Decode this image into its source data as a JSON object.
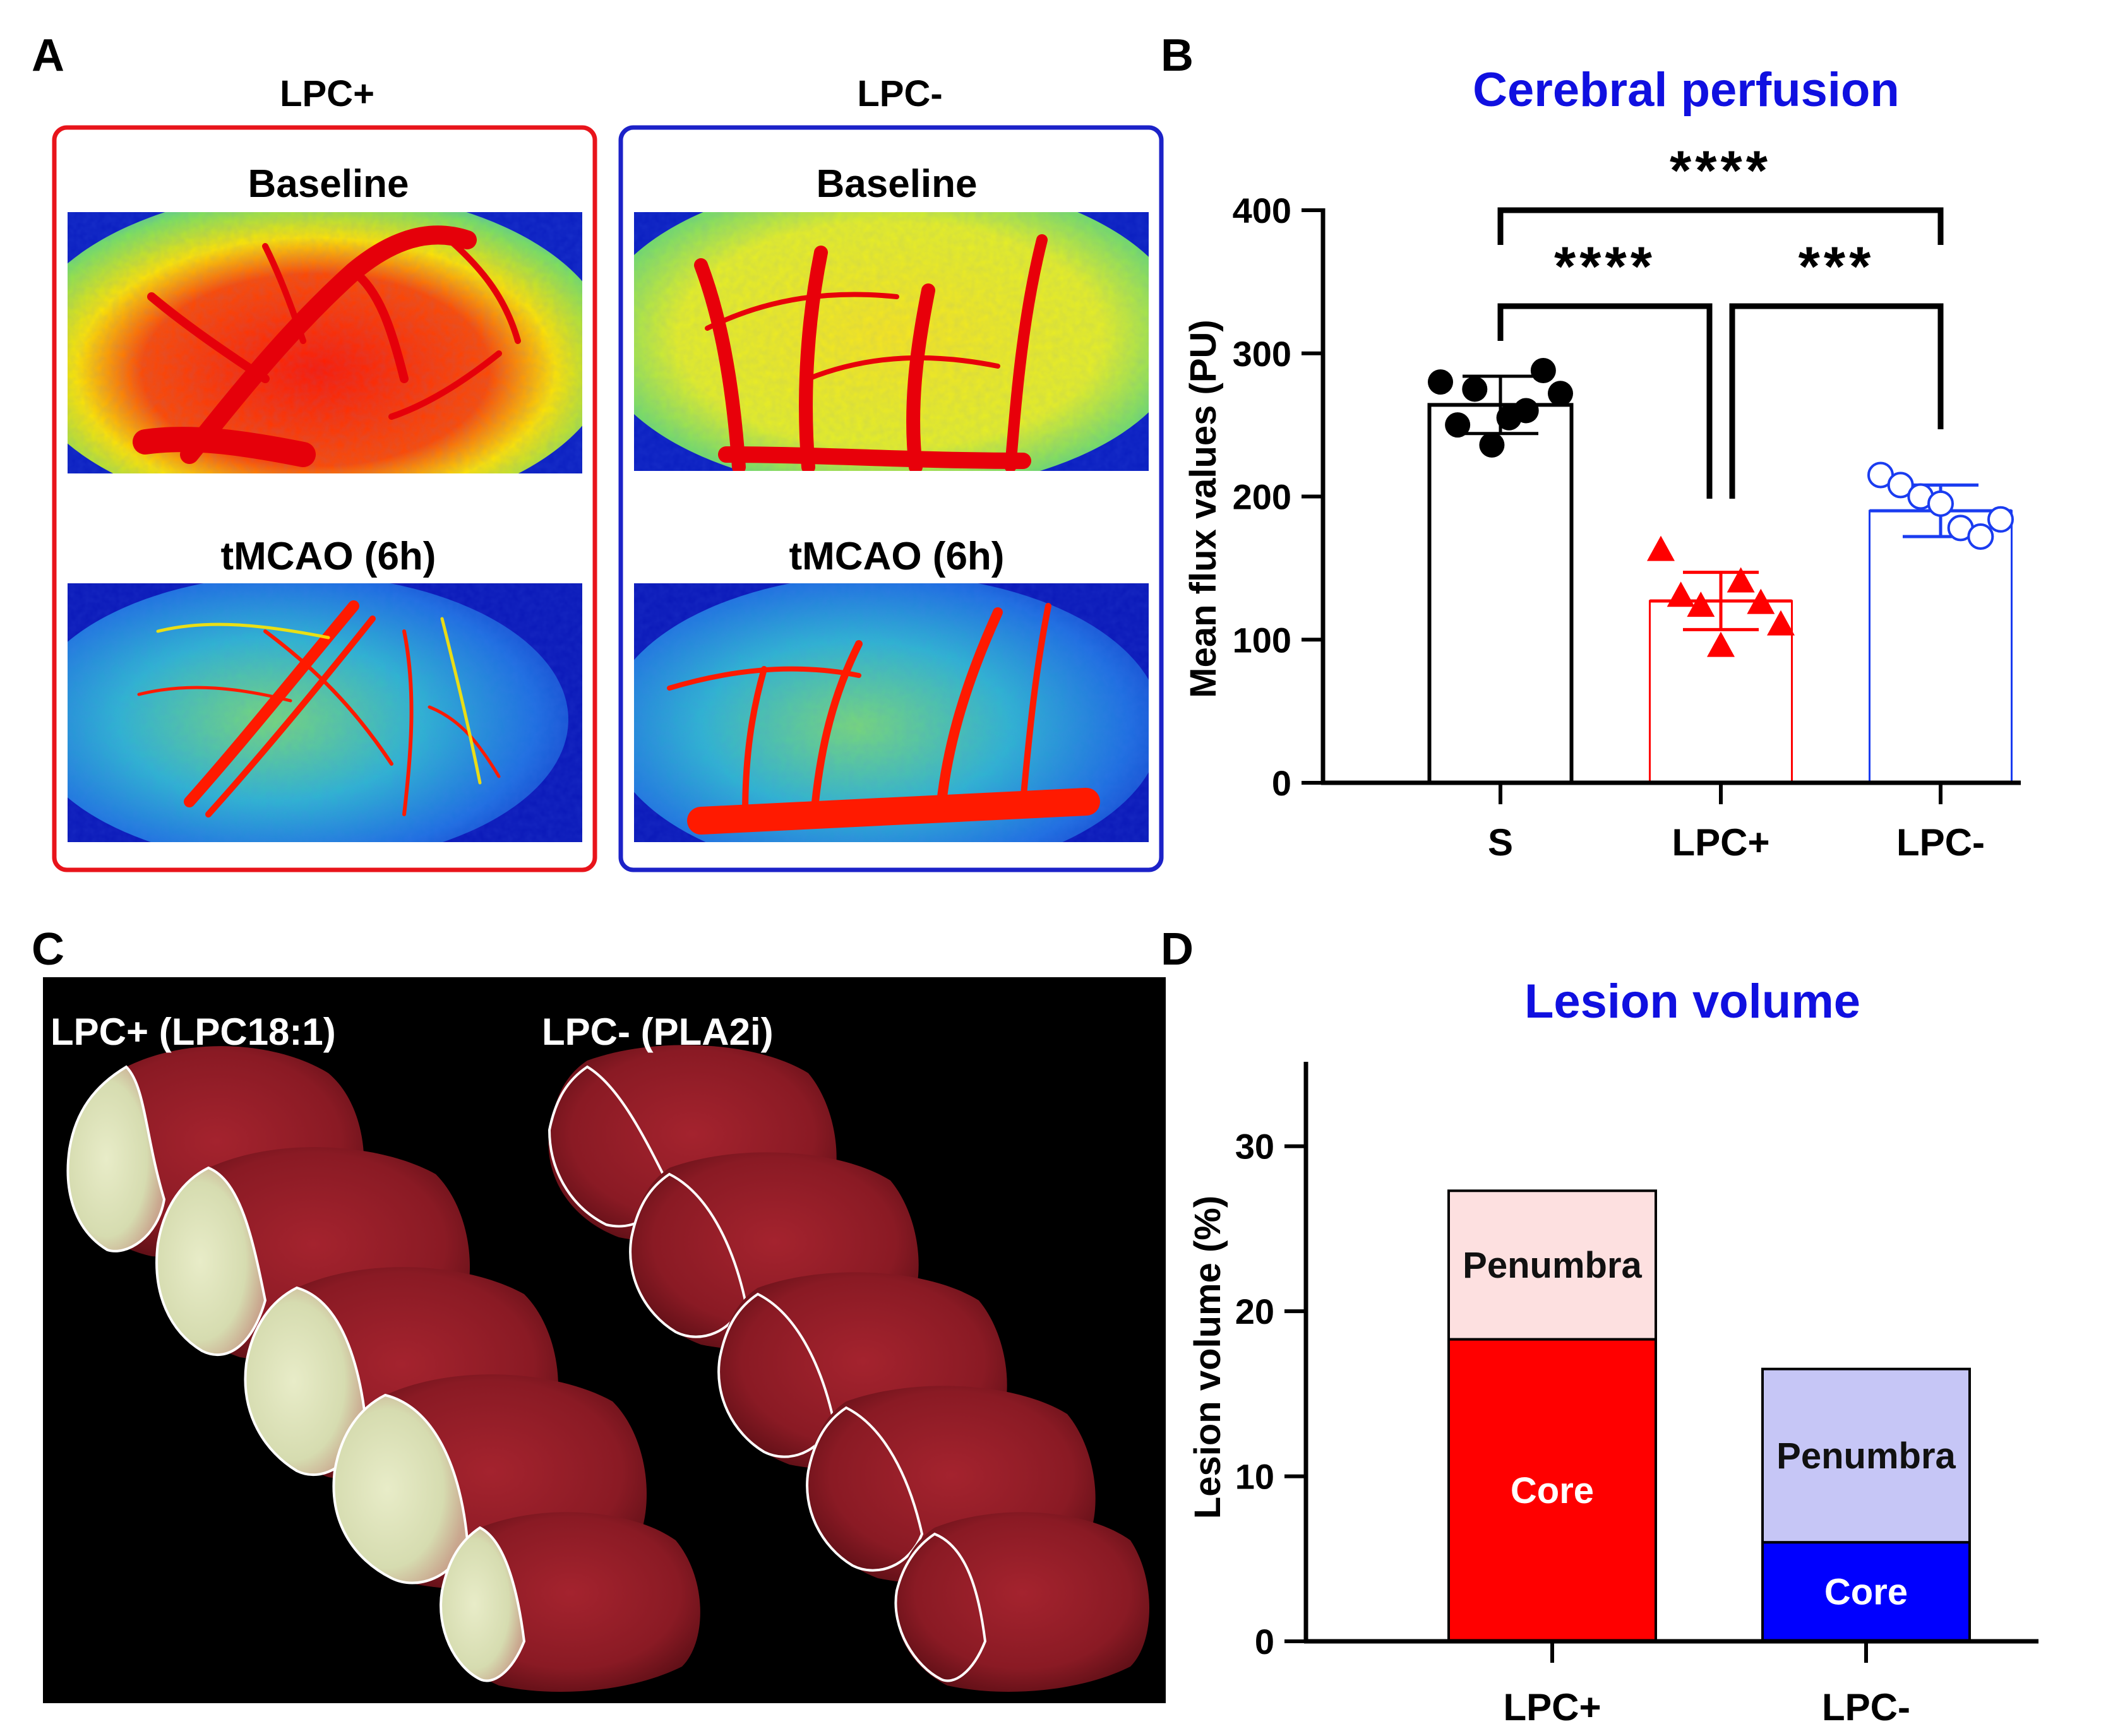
{
  "panels": {
    "a": {
      "letter": "A",
      "groups": [
        {
          "label": "LPC+",
          "frame_color": "#e8141b",
          "images": [
            "Baseline",
            "tMCAO (6h)"
          ]
        },
        {
          "label": "LPC-",
          "frame_color": "#1c22c8",
          "images": [
            "Baseline",
            "tMCAO (6h)"
          ]
        }
      ]
    },
    "b": {
      "letter": "B"
    },
    "c": {
      "letter": "C",
      "labels": [
        "LPC+ (LPC18:1)",
        "LPC- (PLA2i)"
      ]
    },
    "d": {
      "letter": "D"
    }
  },
  "chart_data": [
    {
      "type": "bar",
      "title": "Cerebral perfusion",
      "title_color": "#1010e0",
      "ylabel": "Mean flux values (PU)",
      "xlabel": "",
      "ylim": [
        0,
        400
      ],
      "yticks": [
        "0",
        "100",
        "200",
        "300",
        "400"
      ],
      "categories": [
        "S",
        "LPC+",
        "LPC-"
      ],
      "values": [
        264,
        127,
        190
      ],
      "sd": [
        20,
        20,
        18
      ],
      "colors": [
        "#000000",
        "#ff0000",
        "#1a3cf0"
      ],
      "markers": [
        "filled-circle",
        "filled-triangle",
        "open-circle"
      ],
      "points": [
        [
          280,
          250,
          275,
          236,
          255,
          260,
          288,
          272
        ],
        [
          162,
          130,
          123,
          95,
          140,
          125,
          110
        ],
        [
          215,
          208,
          200,
          195,
          178,
          172,
          184
        ]
      ],
      "significance": [
        {
          "from": "S",
          "to": "LPC-",
          "label": "****"
        },
        {
          "from": "S",
          "to": "LPC+",
          "label": "****"
        },
        {
          "from": "LPC+",
          "to": "LPC-",
          "label": "***"
        }
      ],
      "grid": false
    },
    {
      "type": "stacked-bar",
      "title": "Lesion volume",
      "title_color": "#1010e0",
      "ylabel": "Lesion volume (%)",
      "xlabel": "",
      "ylim": [
        0,
        35
      ],
      "yticks": [
        "0",
        "10",
        "20",
        "30"
      ],
      "categories": [
        "LPC+",
        "LPC-"
      ],
      "series": [
        {
          "name": "Core",
          "values": [
            18.3,
            6.0
          ],
          "colors": [
            "#ff0000",
            "#0000ff"
          ],
          "label_color": "#ffffff"
        },
        {
          "name": "Penumbra",
          "values": [
            9.0,
            10.5
          ],
          "colors": [
            "#fde0e0",
            "#c6c6f6"
          ],
          "label_color": "#111111"
        }
      ],
      "grid": false
    }
  ]
}
